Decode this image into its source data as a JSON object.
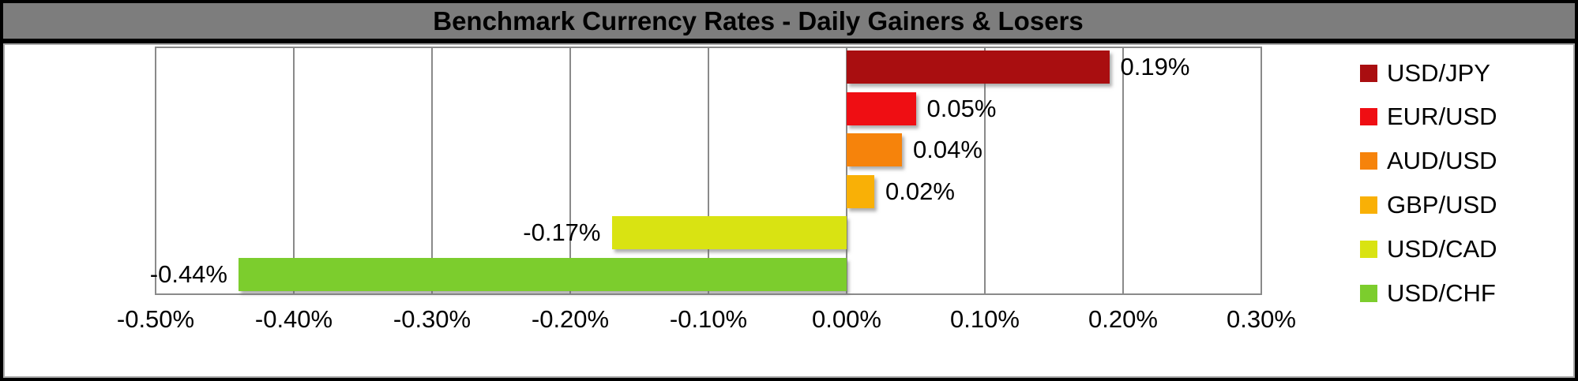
{
  "title": "Benchmark Currency Rates - Daily Gainers & Losers",
  "colors": {
    "title_bg": "#7d7d7d",
    "title_text": "#000000",
    "grid": "#8a8a8a",
    "plot_bg": "#ffffff",
    "frame": "#000000"
  },
  "chart_data": {
    "type": "bar",
    "orientation": "horizontal",
    "title": "Benchmark Currency Rates - Daily Gainers & Losers",
    "categories": [
      "USD/JPY",
      "EUR/USD",
      "AUD/USD",
      "GBP/USD",
      "USD/CAD",
      "USD/CHF"
    ],
    "values": [
      0.19,
      0.05,
      0.04,
      0.02,
      -0.17,
      -0.44
    ],
    "data_labels": [
      "0.19%",
      "0.05%",
      "0.04%",
      "0.02%",
      "-0.17%",
      "-0.44%"
    ],
    "colors": [
      "#a90e10",
      "#ef0e13",
      "#f6830b",
      "#f9b006",
      "#d9e312",
      "#7ccd2d"
    ],
    "xlim": [
      -0.5,
      0.3
    ],
    "x_tick_values": [
      -0.5,
      -0.4,
      -0.3,
      -0.2,
      -0.1,
      0.0,
      0.1,
      0.2,
      0.3
    ],
    "x_ticks": [
      "-0.50%",
      "-0.40%",
      "-0.30%",
      "-0.20%",
      "-0.10%",
      "0.00%",
      "0.10%",
      "0.20%",
      "0.30%"
    ],
    "grid": true,
    "legend_position": "right",
    "legend": [
      {
        "label": "USD/JPY",
        "color": "#a90e10"
      },
      {
        "label": "EUR/USD",
        "color": "#ef0e13"
      },
      {
        "label": "AUD/USD",
        "color": "#f6830b"
      },
      {
        "label": "GBP/USD",
        "color": "#f9b006"
      },
      {
        "label": "USD/CAD",
        "color": "#d9e312"
      },
      {
        "label": "USD/CHF",
        "color": "#7ccd2d"
      }
    ]
  }
}
